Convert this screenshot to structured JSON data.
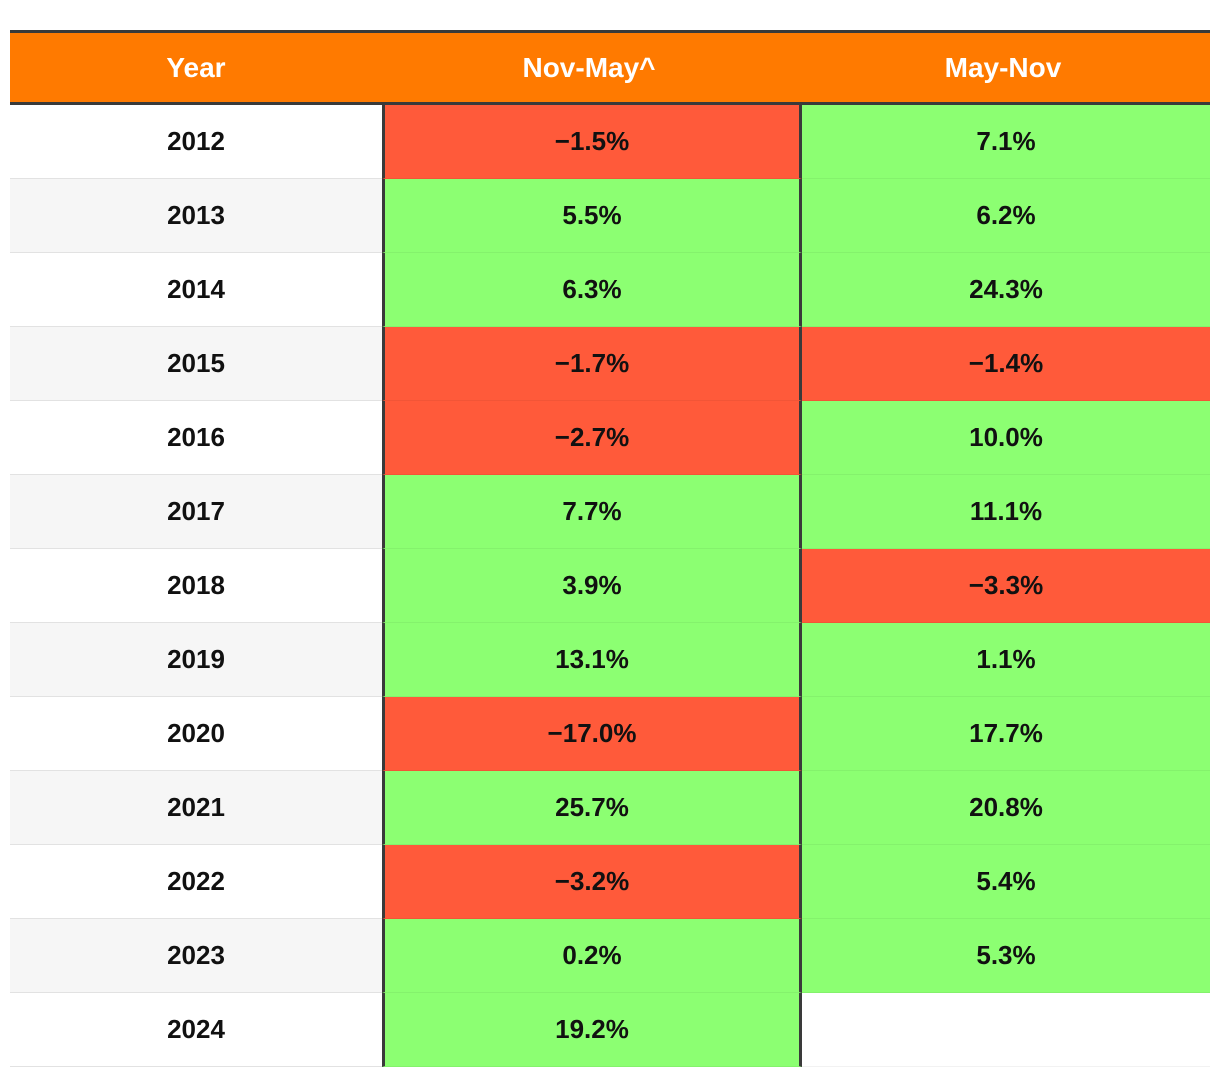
{
  "chart_data": {
    "type": "table",
    "columns": [
      "Year",
      "Nov-May^",
      "May-Nov"
    ],
    "rows": [
      {
        "year": "2012",
        "nov_may": "−1.5%",
        "may_nov": "7.1%"
      },
      {
        "year": "2013",
        "nov_may": "5.5%",
        "may_nov": "6.2%"
      },
      {
        "year": "2014",
        "nov_may": "6.3%",
        "may_nov": "24.3%"
      },
      {
        "year": "2015",
        "nov_may": "−1.7%",
        "may_nov": "−1.4%"
      },
      {
        "year": "2016",
        "nov_may": "−2.7%",
        "may_nov": "10.0%"
      },
      {
        "year": "2017",
        "nov_may": "7.7%",
        "may_nov": "11.1%"
      },
      {
        "year": "2018",
        "nov_may": "3.9%",
        "may_nov": "−3.3%"
      },
      {
        "year": "2019",
        "nov_may": "13.1%",
        "may_nov": "1.1%"
      },
      {
        "year": "2020",
        "nov_may": "−17.0%",
        "may_nov": "17.7%"
      },
      {
        "year": "2021",
        "nov_may": "25.7%",
        "may_nov": "20.8%"
      },
      {
        "year": "2022",
        "nov_may": "−3.2%",
        "may_nov": "5.4%"
      },
      {
        "year": "2023",
        "nov_may": "0.2%",
        "may_nov": "5.3%"
      },
      {
        "year": "2024",
        "nov_may": "19.2%",
        "may_nov": ""
      }
    ]
  },
  "colors": {
    "header": "#ff7a00",
    "positive": "#8cff72",
    "negative": "#ff5a3a"
  }
}
